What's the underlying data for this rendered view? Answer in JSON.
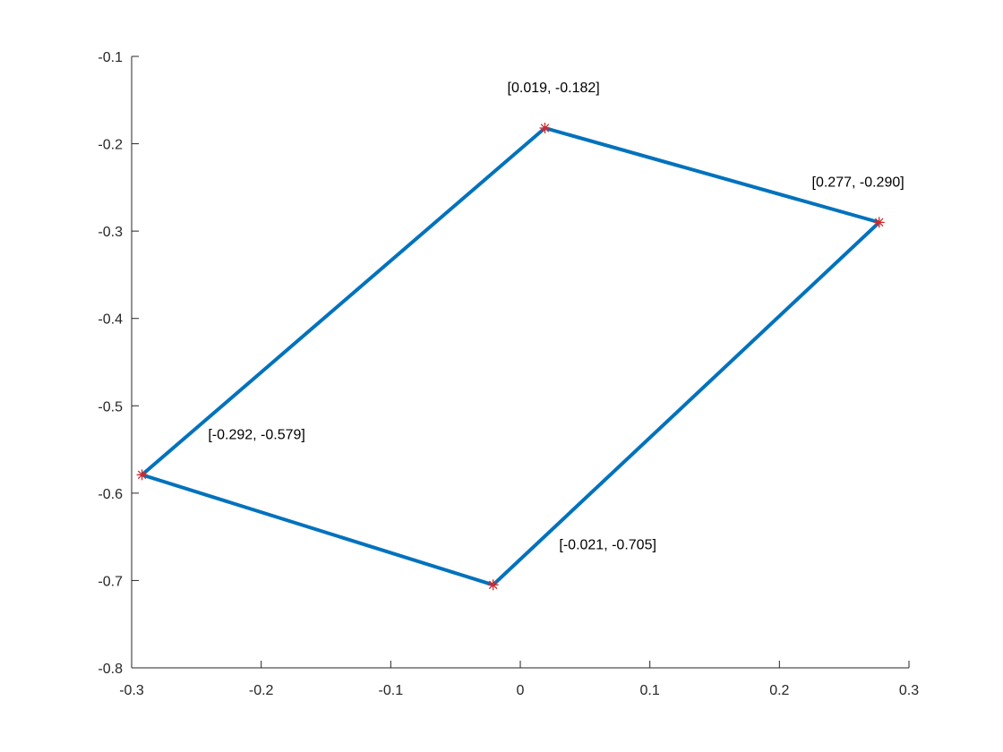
{
  "chart_data": {
    "type": "line",
    "title": "",
    "xlabel": "",
    "ylabel": "",
    "xlim": [
      -0.3,
      0.3
    ],
    "ylim": [
      -0.8,
      -0.1
    ],
    "grid": false,
    "x_ticks": [
      -0.3,
      -0.2,
      -0.1,
      0,
      0.1,
      0.2,
      0.3
    ],
    "x_tick_labels": [
      "-0.3",
      "-0.2",
      "-0.1",
      "0",
      "0.1",
      "0.2",
      "0.3"
    ],
    "y_ticks": [
      -0.8,
      -0.7,
      -0.6,
      -0.5,
      -0.4,
      -0.3,
      -0.2,
      -0.1
    ],
    "y_tick_labels": [
      "-0.8",
      "-0.7",
      "-0.6",
      "-0.5",
      "-0.4",
      "-0.3",
      "-0.2",
      "-0.1"
    ],
    "series": [
      {
        "name": "polygon",
        "closed": true,
        "color": "#0072BD",
        "x": [
          -0.292,
          0.019,
          0.277,
          -0.021
        ],
        "y": [
          -0.579,
          -0.182,
          -0.29,
          -0.705
        ]
      }
    ],
    "markers": {
      "color": "#D62728",
      "symbol": "asterisk",
      "points": [
        {
          "x": 0.019,
          "y": -0.182
        },
        {
          "x": 0.277,
          "y": -0.29
        },
        {
          "x": -0.292,
          "y": -0.579
        },
        {
          "x": -0.021,
          "y": -0.705
        }
      ]
    },
    "annotations": [
      {
        "text": "[0.019, -0.182]",
        "x": -0.01,
        "y": -0.135
      },
      {
        "text": "[0.277, -0.290]",
        "x": 0.225,
        "y": -0.243
      },
      {
        "text": "[-0.292, -0.579]",
        "x": -0.241,
        "y": -0.532
      },
      {
        "text": "[-0.021, -0.705]",
        "x": 0.03,
        "y": -0.658
      }
    ]
  }
}
